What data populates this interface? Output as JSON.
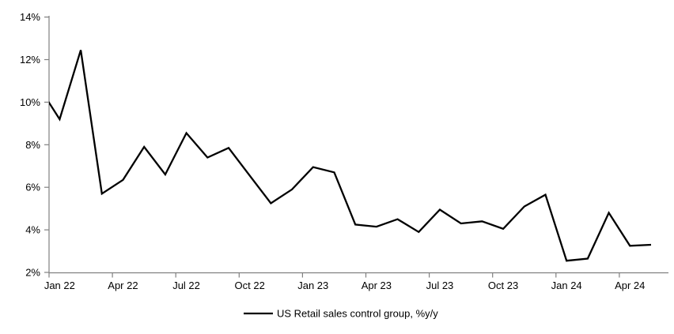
{
  "chart_data": {
    "type": "line",
    "title": "",
    "legend": {
      "label": "US Retail sales control group, %y/y",
      "position": "bottom-center"
    },
    "x_axis": {
      "tick_labels": [
        "Jan 22",
        "Apr 22",
        "Jul 22",
        "Oct 22",
        "Jan 23",
        "Apr 23",
        "Jul 23",
        "Oct 23",
        "Jan 24",
        "Apr 24"
      ],
      "frequency": "monthly, ticks every 3 months"
    },
    "y_axis": {
      "tick_values": [
        2,
        4,
        6,
        8,
        10,
        12,
        14
      ],
      "tick_labels": [
        "2%",
        "4%",
        "6%",
        "8%",
        "10%",
        "12%",
        "14%"
      ],
      "ylim": [
        2,
        14
      ],
      "unit": "%"
    },
    "grid": false,
    "series": [
      {
        "name": "US Retail sales control group, %y/y",
        "color": "#000000",
        "first_point_clipped_at_left_axis": true,
        "x": [
          "Dec 21",
          "Jan 22",
          "Feb 22",
          "Mar 22",
          "Apr 22",
          "May 22",
          "Jun 22",
          "Jul 22",
          "Aug 22",
          "Sep 22",
          "Oct 22",
          "Nov 22",
          "Dec 22",
          "Jan 23",
          "Feb 23",
          "Mar 23",
          "Apr 23",
          "May 23",
          "Jun 23",
          "Jul 23",
          "Aug 23",
          "Sep 23",
          "Oct 23",
          "Nov 23",
          "Dec 23",
          "Jan 24",
          "Feb 24",
          "Mar 24",
          "Apr 24",
          "May 24"
        ],
        "values": [
          10.75,
          9.2,
          12.45,
          5.7,
          6.35,
          7.9,
          6.6,
          8.55,
          7.4,
          7.85,
          6.55,
          5.25,
          5.9,
          6.95,
          6.7,
          4.25,
          4.15,
          4.5,
          3.9,
          4.95,
          4.3,
          4.4,
          4.05,
          5.1,
          5.65,
          2.55,
          2.65,
          4.8,
          3.25,
          3.3
        ]
      }
    ],
    "colors": {
      "line": "#000000",
      "axis": "#808080",
      "text": "#000000",
      "background": "#ffffff"
    }
  }
}
